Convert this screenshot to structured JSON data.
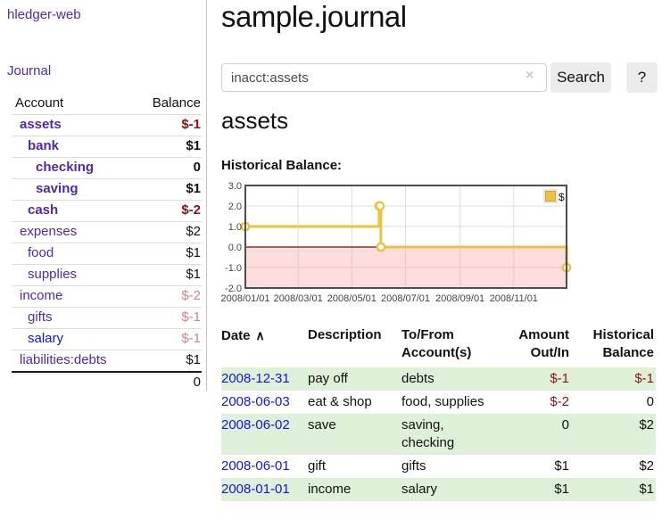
{
  "sidebar": {
    "brand": "hledger-web",
    "journal_link": "Journal",
    "table": {
      "headers": [
        "Account",
        "Balance"
      ],
      "rows": [
        {
          "account": "assets",
          "indent": 0,
          "bold": true,
          "link_color": "purple",
          "balance": "$-1",
          "balance_style": "neg-strong"
        },
        {
          "account": "bank",
          "indent": 1,
          "bold": true,
          "link_color": "purple",
          "balance": "$1",
          "balance_style": "pos-strong"
        },
        {
          "account": "checking",
          "indent": 2,
          "bold": true,
          "link_color": "purple",
          "balance": "0",
          "balance_style": "pos-strong"
        },
        {
          "account": "saving",
          "indent": 2,
          "bold": true,
          "link_color": "purple",
          "balance": "$1",
          "balance_style": "pos-strong"
        },
        {
          "account": "cash",
          "indent": 1,
          "bold": true,
          "link_color": "purple",
          "balance": "$-2",
          "balance_style": "neg-strong"
        },
        {
          "account": "expenses",
          "indent": 0,
          "bold": false,
          "link_color": "purple",
          "balance": "$2",
          "balance_style": "pos"
        },
        {
          "account": "food",
          "indent": 1,
          "bold": false,
          "link_color": "purple",
          "balance": "$1",
          "balance_style": "pos"
        },
        {
          "account": "supplies",
          "indent": 1,
          "bold": false,
          "link_color": "purple",
          "balance": "$1",
          "balance_style": "pos"
        },
        {
          "account": "income",
          "indent": 0,
          "bold": false,
          "link_color": "purple",
          "balance": "$-2",
          "balance_style": "neg-soft"
        },
        {
          "account": "gifts",
          "indent": 1,
          "bold": false,
          "link_color": "purple",
          "balance": "$-1",
          "balance_style": "neg-soft"
        },
        {
          "account": "salary",
          "indent": 1,
          "bold": false,
          "link_color": "blue",
          "balance": "$-1",
          "balance_style": "neg-soft"
        },
        {
          "account": "liabilities:debts",
          "indent": 0,
          "bold": false,
          "link_color": "purple",
          "balance": "$1",
          "balance_style": "pos"
        }
      ],
      "total": "0"
    }
  },
  "header": {
    "title": "sample.journal"
  },
  "search": {
    "value": "inacct:assets",
    "clear_icon": "×",
    "button_label": "Search",
    "help_label": "?"
  },
  "account_page": {
    "heading": "assets",
    "chart_label": "Historical Balance:"
  },
  "chart_data": {
    "type": "line",
    "mode": "steps",
    "title": "Historical Balance",
    "series": [
      {
        "name": "$",
        "color": "#edc240",
        "points": [
          [
            "2008-01-01",
            1
          ],
          [
            "2008-06-01",
            2
          ],
          [
            "2008-06-02",
            2
          ],
          [
            "2008-06-03",
            0
          ],
          [
            "2008-12-31",
            -1
          ]
        ]
      }
    ],
    "xrange": [
      "2008-01-01",
      "2008-12-31"
    ],
    "ylim": [
      -2,
      3
    ],
    "yticks": [
      "3.0",
      "2.0",
      "1.0",
      "0.0",
      "-1.0",
      "-2.0"
    ],
    "xticks": [
      "2008/01/01",
      "2008/03/01",
      "2008/05/01",
      "2008/07/01",
      "2008/09/01",
      "2008/11/01"
    ],
    "legend": "$",
    "legend_position": "top-right",
    "grid": true,
    "negative_fill": "rgba(246,164,164,0.38)",
    "zero_line_color": "#8b0000",
    "tick_color": "#444444",
    "grid_color": "#dcdcdc",
    "border_color": "#4d4d4d"
  },
  "register": {
    "columns": [
      {
        "label": "Date",
        "align": "left",
        "sort_icon": "∧",
        "sortable": true
      },
      {
        "label": "Description",
        "align": "left"
      },
      {
        "label": "To/From\nAccount(s)",
        "align": "left"
      },
      {
        "label": "Amount\nOut/In",
        "align": "right"
      },
      {
        "label": "Historical\nBalance",
        "align": "right"
      }
    ],
    "rows": [
      {
        "date": "2008-12-31",
        "description": "pay off",
        "accounts": "debts",
        "amount": "$-1",
        "amount_neg": true,
        "balance": "$-1",
        "balance_neg": true
      },
      {
        "date": "2008-06-03",
        "description": "eat & shop",
        "accounts": "food, supplies",
        "amount": "$-2",
        "amount_neg": true,
        "balance": "0",
        "balance_neg": false
      },
      {
        "date": "2008-06-02",
        "description": "save",
        "accounts": "saving,\nchecking",
        "amount": "0",
        "amount_neg": false,
        "balance": "$2",
        "balance_neg": false
      },
      {
        "date": "2008-06-01",
        "description": "gift",
        "accounts": "gifts",
        "amount": "$1",
        "amount_neg": false,
        "balance": "$2",
        "balance_neg": false
      },
      {
        "date": "2008-01-01",
        "description": "income",
        "accounts": "salary",
        "amount": "$1",
        "amount_neg": false,
        "balance": "$1",
        "balance_neg": false
      }
    ]
  },
  "colors": {
    "link_purple": "#5229a3",
    "link_blue": "#1414dd",
    "negative_strong": "#8b1212",
    "negative_soft": "#c58888",
    "row_stripe_green": "#dff0d8",
    "series_yellow": "#edc240",
    "button_gray": "#ebebeb"
  }
}
